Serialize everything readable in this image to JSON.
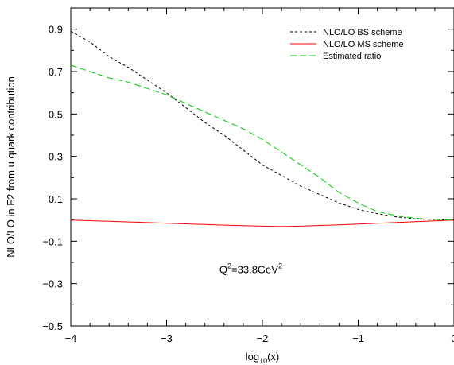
{
  "chart_data": {
    "type": "line",
    "xlabel": "log",
    "xlabel_sub": "10",
    "xlabel_suffix": "(x)",
    "ylabel": "NLO/LO in F2 from u quark contribution",
    "xlim": [
      -4,
      0
    ],
    "ylim": [
      -0.5,
      1.0
    ],
    "x_ticks": [
      -4,
      -3,
      -2,
      -1,
      0
    ],
    "x_tick_labels": [
      "−4",
      "−3",
      "−2",
      "−1",
      "0"
    ],
    "y_ticks": [
      -0.5,
      -0.3,
      -0.1,
      0.1,
      0.3,
      0.5,
      0.7,
      0.9
    ],
    "y_tick_labels": [
      "−0.5",
      "−0.3",
      "−0.1",
      "0.1",
      "0.3",
      "0.5",
      "0.7",
      "0.9"
    ],
    "grid": false,
    "legend_position": "top-right",
    "annotation": {
      "text_main": "Q",
      "sup1": "2",
      "text_mid": "=33.8GeV",
      "sup2": "2",
      "x": -2.2,
      "y": -0.25
    },
    "series": [
      {
        "name": "NLO/LO BS scheme",
        "color": "#000000",
        "dash": "dotted",
        "x": [
          -4.0,
          -3.8,
          -3.6,
          -3.4,
          -3.2,
          -3.0,
          -2.8,
          -2.6,
          -2.4,
          -2.2,
          -2.0,
          -1.8,
          -1.6,
          -1.4,
          -1.2,
          -1.0,
          -0.8,
          -0.6,
          -0.4,
          -0.2,
          0.0
        ],
        "y": [
          0.89,
          0.84,
          0.77,
          0.72,
          0.66,
          0.6,
          0.53,
          0.46,
          0.4,
          0.33,
          0.26,
          0.21,
          0.16,
          0.12,
          0.08,
          0.05,
          0.03,
          0.015,
          0.005,
          0.002,
          0.0
        ]
      },
      {
        "name": "NLO/LO MS scheme",
        "color": "#ff0000",
        "dash": "solid",
        "x": [
          -4.0,
          -3.6,
          -3.2,
          -2.8,
          -2.4,
          -2.0,
          -1.8,
          -1.6,
          -1.2,
          -0.8,
          -0.4,
          0.0
        ],
        "y": [
          0.0,
          -0.006,
          -0.012,
          -0.018,
          -0.024,
          -0.029,
          -0.031,
          -0.029,
          -0.023,
          -0.015,
          -0.008,
          0.0
        ]
      },
      {
        "name": "Estimated ratio",
        "color": "#00cc00",
        "dash": "dashed",
        "x": [
          -4.0,
          -3.8,
          -3.6,
          -3.4,
          -3.2,
          -3.0,
          -2.8,
          -2.6,
          -2.4,
          -2.2,
          -2.0,
          -1.8,
          -1.6,
          -1.4,
          -1.2,
          -1.0,
          -0.8,
          -0.6,
          -0.4,
          -0.2,
          0.0
        ],
        "y": [
          0.73,
          0.7,
          0.67,
          0.65,
          0.62,
          0.59,
          0.55,
          0.51,
          0.47,
          0.43,
          0.38,
          0.32,
          0.26,
          0.2,
          0.13,
          0.08,
          0.04,
          0.02,
          0.008,
          0.003,
          0.0
        ]
      }
    ]
  }
}
